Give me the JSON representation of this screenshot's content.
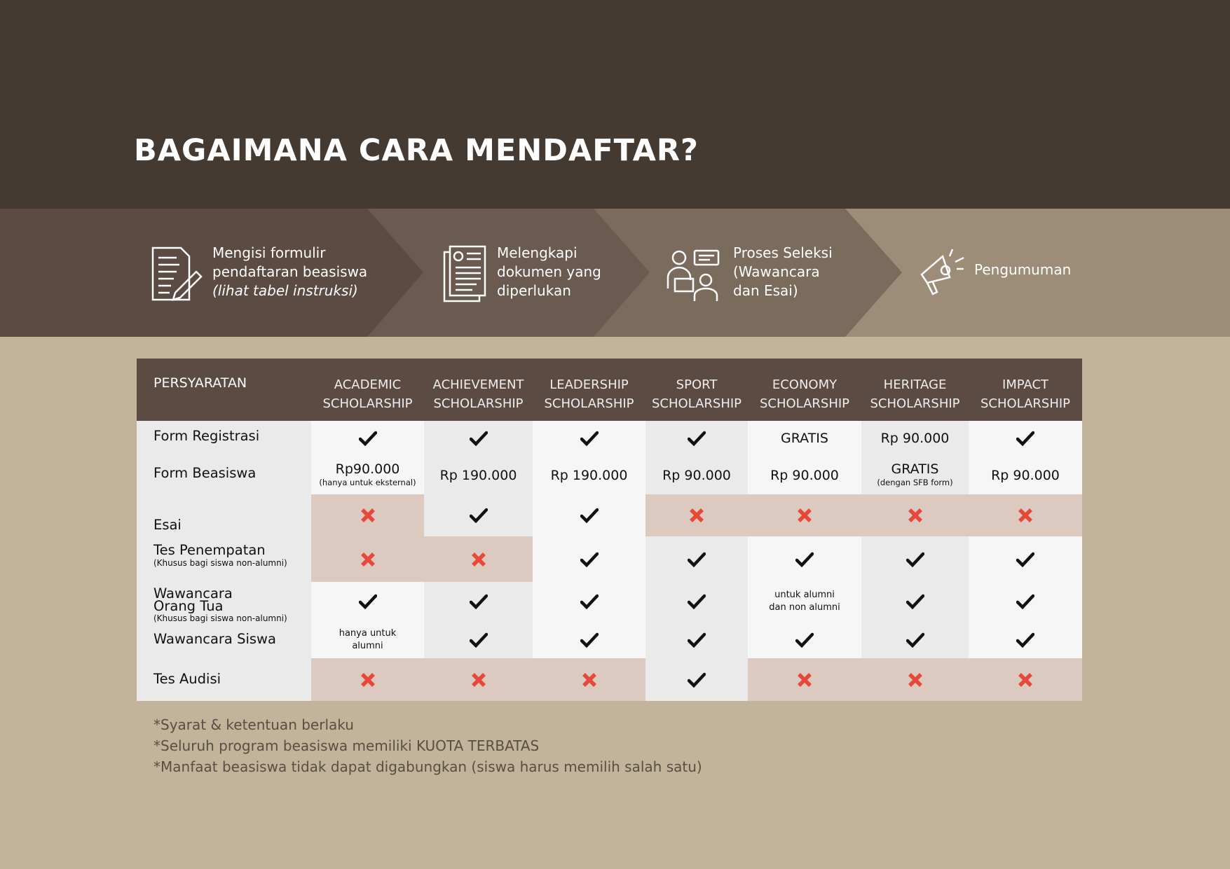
{
  "title": "BAGAIMANA CARA MENDAFTAR?",
  "colors": {
    "top": "#453a31",
    "step1": "#5b4b42",
    "step2": "#6a5a4f",
    "step3": "#7b6b5d",
    "step4": "#9c8c78",
    "background": "#c2b49a",
    "header": "#5b4b42",
    "light": "#f6f6f6",
    "gray": "#eaeaea",
    "pink": "#dcc9bf",
    "cross": "#e8483a",
    "check": "#111111"
  },
  "steps": [
    {
      "icon": "form-pencil-icon",
      "lines": [
        "Mengisi formulir",
        "pendaftaran beasiswa"
      ],
      "italic": "(lihat tabel instruksi)"
    },
    {
      "icon": "documents-icon",
      "lines": [
        "Melengkapi",
        "dokumen yang",
        "diperlukan"
      ]
    },
    {
      "icon": "interview-icon",
      "lines": [
        "Proses Seleksi",
        "(Wawancara",
        "dan Esai)"
      ]
    },
    {
      "icon": "megaphone-icon",
      "lines": [
        "Pengumuman"
      ]
    }
  ],
  "table": {
    "corner": "PERSYARATAN",
    "columns": [
      [
        "ACADEMIC",
        "SCHOLARSHIP"
      ],
      [
        "ACHIEVEMENT",
        "SCHOLARSHIP"
      ],
      [
        "LEADERSHIP",
        "SCHOLARSHIP"
      ],
      [
        "SPORT",
        "SCHOLARSHIP"
      ],
      [
        "ECONOMY",
        "SCHOLARSHIP"
      ],
      [
        "HERITAGE",
        "SCHOLARSHIP"
      ],
      [
        "IMPACT",
        "SCHOLARSHIP"
      ]
    ],
    "rows": [
      {
        "label": "Form Registrasi",
        "cells": [
          {
            "t": "check"
          },
          {
            "t": "check"
          },
          {
            "t": "check"
          },
          {
            "t": "check"
          },
          {
            "t": "text",
            "v": "GRATIS"
          },
          {
            "t": "text",
            "v": "Rp 90.000"
          },
          {
            "t": "check"
          }
        ]
      },
      {
        "label": "Form Beasiswa",
        "cells": [
          {
            "t": "text",
            "v": "Rp90.000",
            "sub": "(hanya untuk eksternal)"
          },
          {
            "t": "text",
            "v": "Rp 190.000"
          },
          {
            "t": "text",
            "v": "Rp 190.000"
          },
          {
            "t": "text",
            "v": "Rp 90.000"
          },
          {
            "t": "text",
            "v": "Rp 90.000"
          },
          {
            "t": "text",
            "v": "GRATIS",
            "sub": "(dengan SFB form)"
          },
          {
            "t": "text",
            "v": "Rp 90.000"
          }
        ]
      },
      {
        "label": "Esai",
        "cells": [
          {
            "t": "cross"
          },
          {
            "t": "check"
          },
          {
            "t": "check"
          },
          {
            "t": "cross"
          },
          {
            "t": "cross"
          },
          {
            "t": "cross"
          },
          {
            "t": "cross"
          }
        ]
      },
      {
        "label": "Tes Penempatan",
        "sub": "(Khusus bagi siswa non-alumni)",
        "cells": [
          {
            "t": "cross"
          },
          {
            "t": "cross"
          },
          {
            "t": "check"
          },
          {
            "t": "check"
          },
          {
            "t": "check"
          },
          {
            "t": "check"
          },
          {
            "t": "check"
          }
        ]
      },
      {
        "label": "Wawancara Orang Tua",
        "sub": "(Khusus bagi siswa non-alumni)",
        "cells": [
          {
            "t": "check"
          },
          {
            "t": "check"
          },
          {
            "t": "check"
          },
          {
            "t": "check"
          },
          {
            "t": "small",
            "v": "untuk alumni dan non alumni"
          },
          {
            "t": "check"
          },
          {
            "t": "check"
          }
        ]
      },
      {
        "label": "Wawancara Siswa",
        "cells": [
          {
            "t": "small",
            "v": "hanya untuk alumni"
          },
          {
            "t": "check"
          },
          {
            "t": "check"
          },
          {
            "t": "check"
          },
          {
            "t": "check"
          },
          {
            "t": "check"
          },
          {
            "t": "check"
          }
        ]
      },
      {
        "label": "Tes Audisi",
        "cells": [
          {
            "t": "cross"
          },
          {
            "t": "cross"
          },
          {
            "t": "cross"
          },
          {
            "t": "check"
          },
          {
            "t": "cross"
          },
          {
            "t": "cross"
          },
          {
            "t": "cross"
          }
        ]
      }
    ]
  },
  "notes": [
    "*Syarat & ketentuan berlaku",
    "*Seluruh program beasiswa memiliki KUOTA TERBATAS",
    "*Manfaat beasiswa tidak dapat digabungkan (siswa harus memilih salah satu)"
  ]
}
